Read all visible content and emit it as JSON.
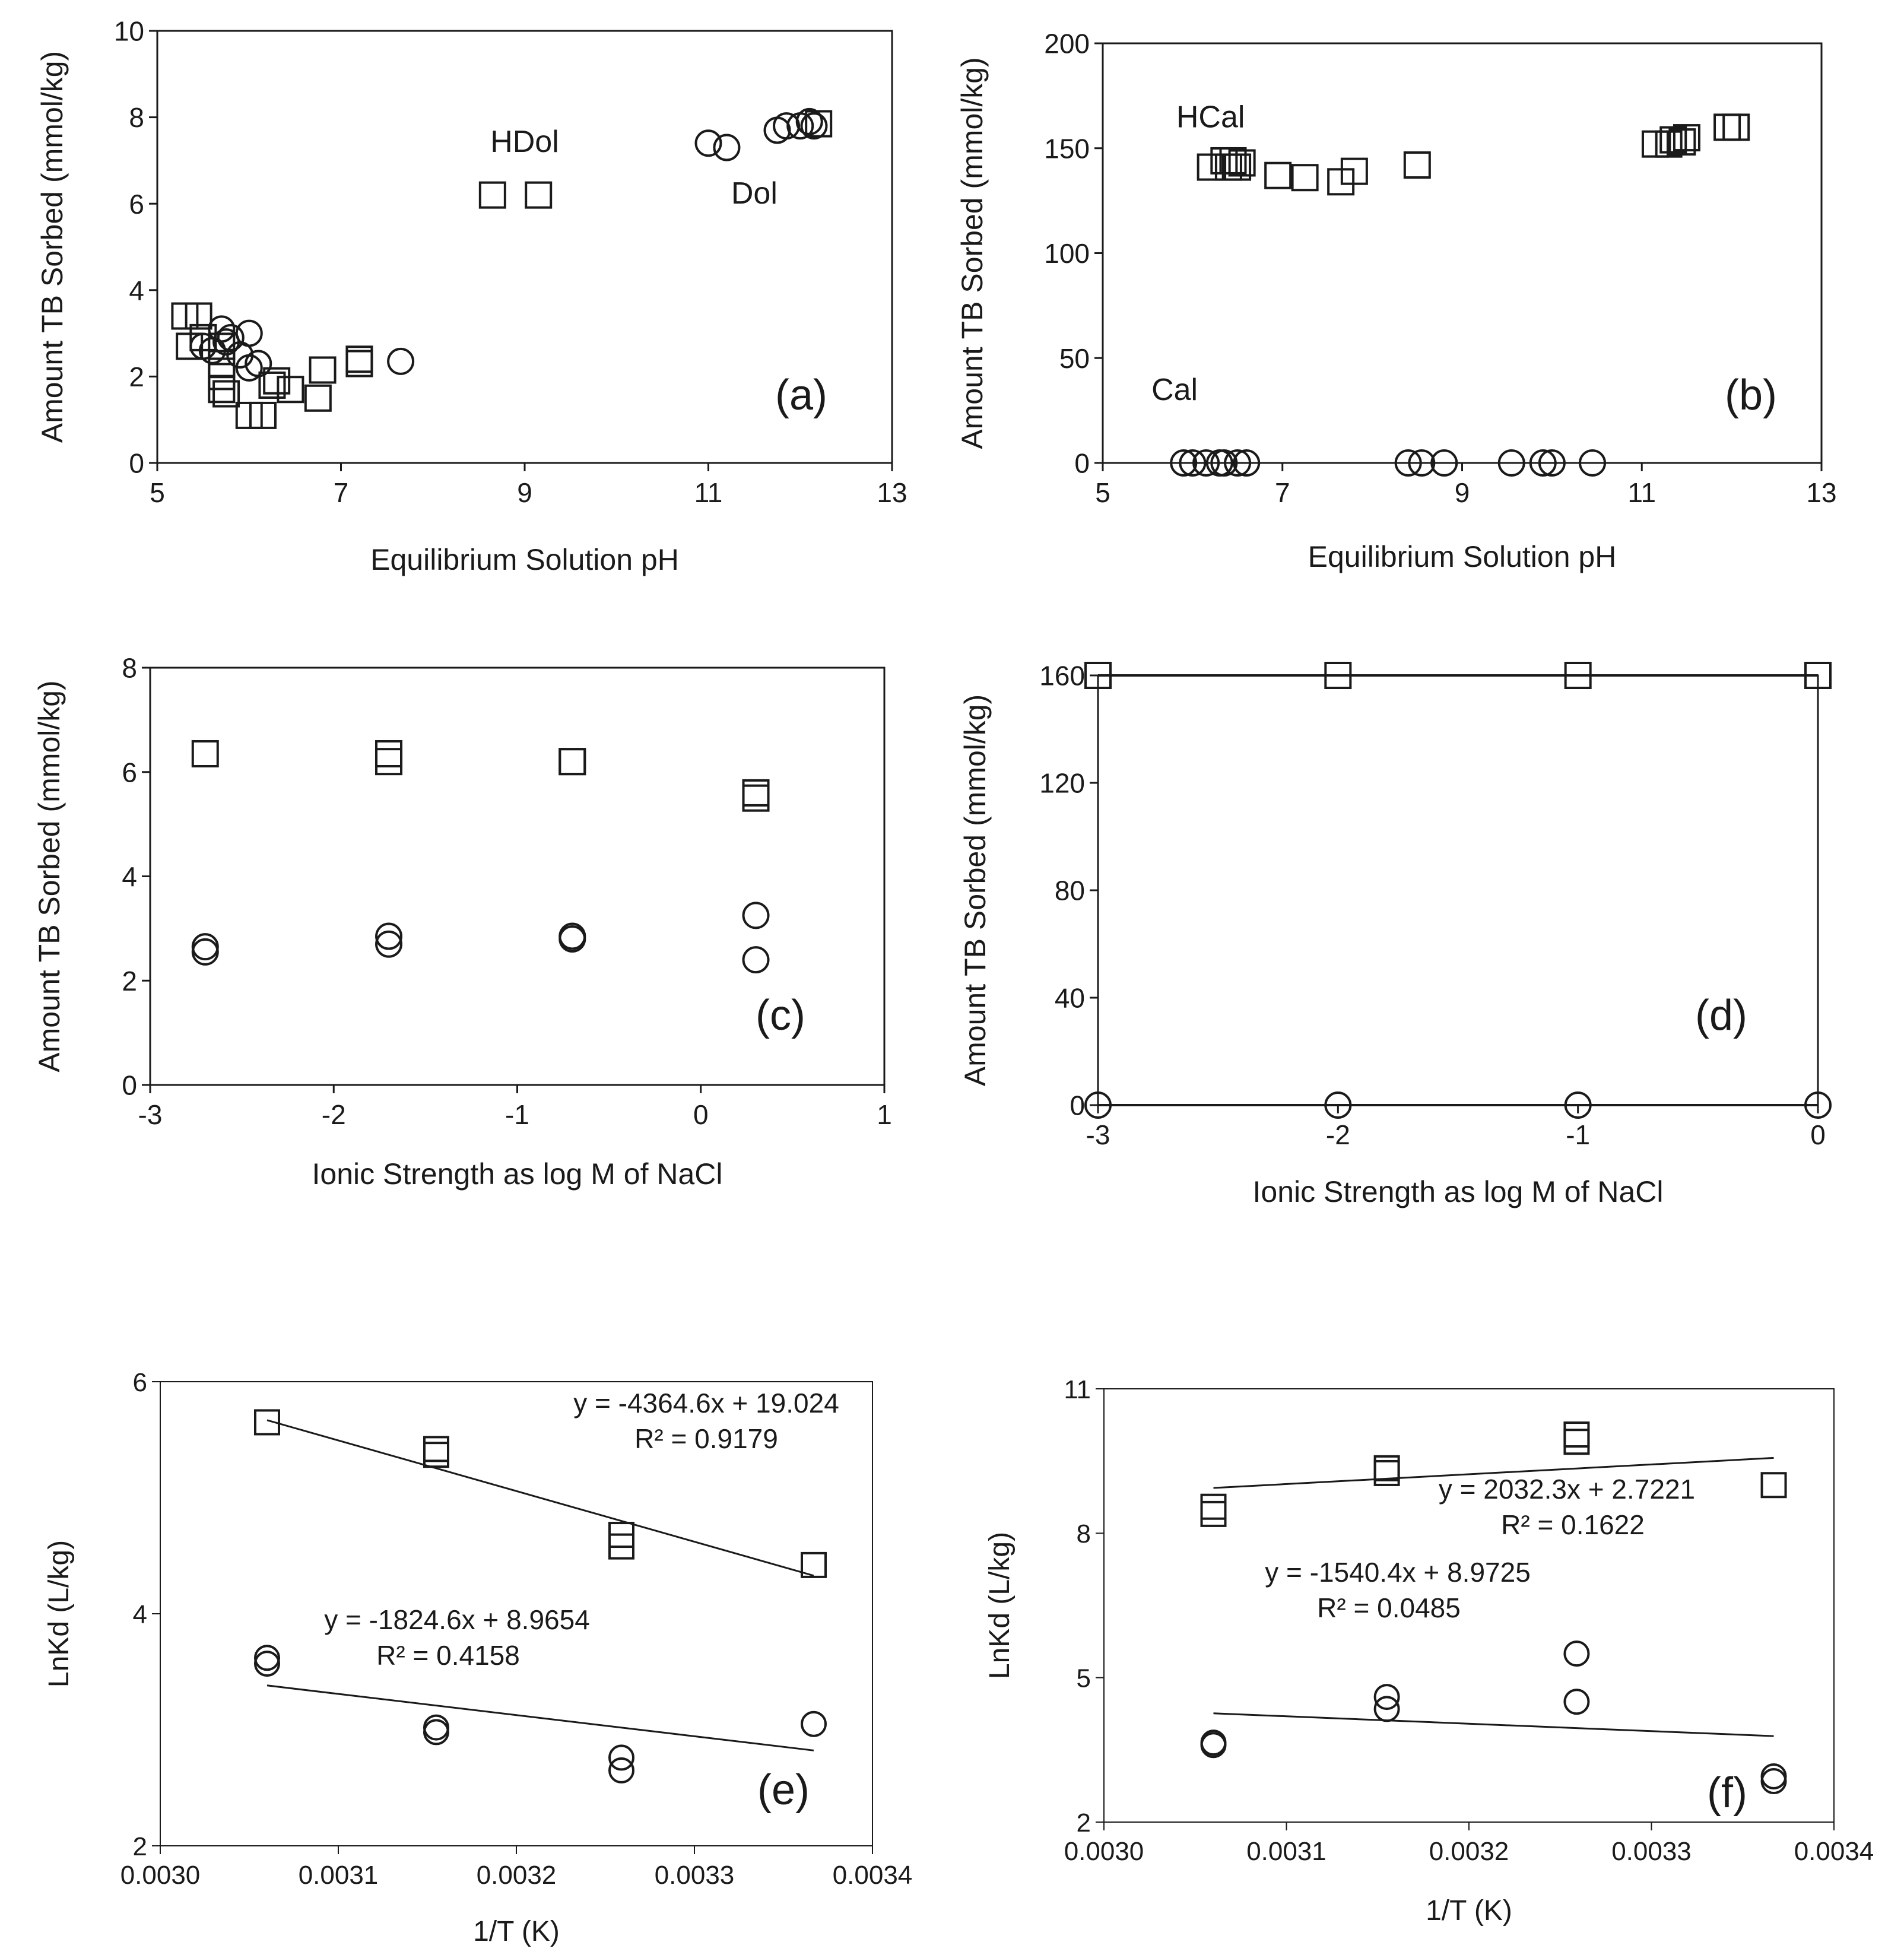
{
  "chart_data": [
    {
      "panel": "(a)",
      "type": "scatter",
      "xlabel": "Equilibrium Solution pH",
      "ylabel": "Amount TB Sorbed (mmol/kg)",
      "xlim": [
        5,
        13
      ],
      "ylim": [
        0,
        10
      ],
      "xticks": [
        5,
        7,
        9,
        11,
        13
      ],
      "yticks": [
        0,
        2,
        4,
        6,
        8,
        10
      ],
      "labels": [
        {
          "text": "HDol",
          "x": 9.0,
          "y": 7.2
        },
        {
          "text": "Dol",
          "x": 11.5,
          "y": 6.0
        }
      ],
      "series": [
        {
          "name": "Dol",
          "marker": "circle",
          "points": [
            [
              5.5,
              2.7
            ],
            [
              5.6,
              2.6
            ],
            [
              5.7,
              3.1
            ],
            [
              5.75,
              2.8
            ],
            [
              5.8,
              2.9
            ],
            [
              5.9,
              2.5
            ],
            [
              6.0,
              3.0
            ],
            [
              6.0,
              2.2
            ],
            [
              6.1,
              2.3
            ],
            [
              7.65,
              2.35
            ],
            [
              11.0,
              7.4
            ],
            [
              11.2,
              7.3
            ],
            [
              11.75,
              7.7
            ],
            [
              11.85,
              7.8
            ],
            [
              12.0,
              7.8
            ],
            [
              12.1,
              7.9
            ],
            [
              12.15,
              7.8
            ]
          ]
        },
        {
          "name": "HDol",
          "marker": "square",
          "points": [
            [
              5.3,
              3.4
            ],
            [
              5.45,
              3.4
            ],
            [
              5.35,
              2.7
            ],
            [
              5.5,
              2.9
            ],
            [
              5.7,
              2.7
            ],
            [
              5.7,
              2.3
            ],
            [
              5.7,
              2.0
            ],
            [
              5.7,
              1.7
            ],
            [
              5.75,
              1.6
            ],
            [
              6.0,
              1.1
            ],
            [
              6.15,
              1.1
            ],
            [
              6.25,
              1.8
            ],
            [
              6.3,
              1.9
            ],
            [
              6.45,
              1.7
            ],
            [
              6.75,
              1.5
            ],
            [
              6.8,
              2.15
            ],
            [
              7.2,
              2.4
            ],
            [
              7.2,
              2.3
            ],
            [
              8.65,
              6.2
            ],
            [
              9.15,
              6.2
            ],
            [
              12.2,
              7.85
            ]
          ]
        }
      ]
    },
    {
      "panel": "(b)",
      "type": "scatter",
      "xlabel": "Equilibrium Solution pH",
      "ylabel": "Amount TB Sorbed (mmol/kg)",
      "xlim": [
        5,
        13
      ],
      "ylim": [
        0,
        200
      ],
      "xticks": [
        5,
        7,
        9,
        11,
        13
      ],
      "yticks": [
        0,
        50,
        100,
        150,
        200
      ],
      "labels": [
        {
          "text": "HCal",
          "x": 6.2,
          "y": 160
        },
        {
          "text": "Cal",
          "x": 5.8,
          "y": 30
        }
      ],
      "series": [
        {
          "name": "HCal",
          "marker": "square",
          "points": [
            [
              6.2,
              141
            ],
            [
              6.35,
              144
            ],
            [
              6.4,
              141
            ],
            [
              6.45,
              144
            ],
            [
              6.5,
              141
            ],
            [
              6.55,
              143
            ],
            [
              6.95,
              137
            ],
            [
              7.25,
              136
            ],
            [
              7.65,
              134
            ],
            [
              7.8,
              139
            ],
            [
              8.5,
              142
            ],
            [
              11.15,
              152
            ],
            [
              11.3,
              152
            ],
            [
              11.35,
              154
            ],
            [
              11.45,
              153
            ],
            [
              11.5,
              155
            ],
            [
              11.95,
              160
            ],
            [
              12.05,
              160
            ]
          ]
        },
        {
          "name": "Cal",
          "marker": "circle",
          "points": [
            [
              5.9,
              0
            ],
            [
              6.0,
              0
            ],
            [
              6.15,
              0
            ],
            [
              6.3,
              0
            ],
            [
              6.35,
              0
            ],
            [
              6.5,
              0
            ],
            [
              6.6,
              0
            ],
            [
              8.4,
              0
            ],
            [
              8.55,
              0
            ],
            [
              8.8,
              0
            ],
            [
              9.55,
              0
            ],
            [
              9.9,
              0
            ],
            [
              10.0,
              0
            ],
            [
              10.45,
              0
            ]
          ]
        }
      ]
    },
    {
      "panel": "(c)",
      "type": "scatter",
      "xlabel": "Ionic Strength as log M of NaCl",
      "ylabel": "Amount TB Sorbed (mmol/kg)",
      "xlim": [
        -3,
        1
      ],
      "ylim": [
        0,
        8
      ],
      "xticks": [
        -3,
        -2,
        -1,
        0,
        1
      ],
      "yticks": [
        0,
        2,
        4,
        6,
        8
      ],
      "series": [
        {
          "name": "squares",
          "marker": "square",
          "points": [
            [
              -2.7,
              6.35
            ],
            [
              -1.7,
              6.35
            ],
            [
              -1.7,
              6.2
            ],
            [
              -0.7,
              6.2
            ],
            [
              -0.7,
              6.2
            ],
            [
              0.3,
              5.6
            ],
            [
              0.3,
              5.5
            ]
          ]
        },
        {
          "name": "circles",
          "marker": "circle",
          "points": [
            [
              -2.7,
              2.65
            ],
            [
              -2.7,
              2.55
            ],
            [
              -1.7,
              2.85
            ],
            [
              -1.7,
              2.7
            ],
            [
              -0.7,
              2.85
            ],
            [
              -0.7,
              2.8
            ],
            [
              0.3,
              3.25
            ],
            [
              0.3,
              2.4
            ]
          ]
        }
      ]
    },
    {
      "panel": "(d)",
      "type": "line",
      "xlabel": "Ionic Strength as log M of NaCl",
      "ylabel": "Amount TB Sorbed (mmol/kg)",
      "xlim": [
        -3,
        0
      ],
      "ylim": [
        0,
        160
      ],
      "xticks": [
        -3,
        -2,
        -1,
        0
      ],
      "yticks": [
        0,
        40,
        80,
        120,
        160
      ],
      "series": [
        {
          "name": "squares",
          "marker": "square",
          "points": [
            [
              -3,
              160
            ],
            [
              -2,
              160
            ],
            [
              -1,
              160
            ],
            [
              0,
              160
            ]
          ]
        },
        {
          "name": "circles",
          "marker": "circle",
          "points": [
            [
              -3,
              0
            ],
            [
              -2,
              0
            ],
            [
              -1,
              0
            ],
            [
              0,
              0
            ]
          ]
        }
      ]
    },
    {
      "panel": "(e)",
      "type": "scatter",
      "xlabel": "1/T (K)",
      "ylabel": "LnKd (L/kg)",
      "xlim": [
        0.003,
        0.0034
      ],
      "ylim": [
        2,
        6
      ],
      "xticks": [
        0.003,
        0.0031,
        0.0032,
        0.0033,
        0.0034
      ],
      "xtick_labels": [
        "0.0030",
        "0.0031",
        "0.0032",
        "0.0033",
        "0.0034"
      ],
      "yticks": [
        2,
        4,
        6
      ],
      "series": [
        {
          "name": "squares",
          "marker": "square",
          "points": [
            [
              0.00306,
              5.65
            ],
            [
              0.003155,
              5.42
            ],
            [
              0.003155,
              5.37
            ],
            [
              0.003259,
              4.68
            ],
            [
              0.003259,
              4.58
            ],
            [
              0.003367,
              4.42
            ]
          ],
          "trendline": {
            "slope": -4364.6,
            "intercept": 19.024,
            "equation": "y = -4364.6x + 19.024",
            "r2": "R² = 0.9179"
          }
        },
        {
          "name": "circles",
          "marker": "circle",
          "points": [
            [
              0.00306,
              3.62
            ],
            [
              0.00306,
              3.57
            ],
            [
              0.003155,
              3.02
            ],
            [
              0.003155,
              2.98
            ],
            [
              0.003259,
              2.76
            ],
            [
              0.003259,
              2.65
            ],
            [
              0.003367,
              3.05
            ]
          ],
          "trendline": {
            "slope": -1824.6,
            "intercept": 8.9654,
            "equation": "y = -1824.6x + 8.9654",
            "r2": "R² = 0.4158"
          }
        }
      ]
    },
    {
      "panel": "(f)",
      "type": "scatter",
      "xlabel": "1/T (K)",
      "ylabel": "LnKd (L/kg)",
      "xlim": [
        0.003,
        0.0034
      ],
      "ylim": [
        2,
        11
      ],
      "xticks": [
        0.003,
        0.0031,
        0.0032,
        0.0033,
        0.0034
      ],
      "xtick_labels": [
        "0.0030",
        "0.0031",
        "0.0032",
        "0.0033",
        "0.0034"
      ],
      "yticks": [
        2,
        5,
        8,
        11
      ],
      "series": [
        {
          "name": "squares",
          "marker": "square",
          "points": [
            [
              0.00306,
              8.55
            ],
            [
              0.00306,
              8.4
            ],
            [
              0.003155,
              9.35
            ],
            [
              0.003155,
              9.25
            ],
            [
              0.003259,
              10.05
            ],
            [
              0.003259,
              9.9
            ],
            [
              0.003367,
              9.0
            ]
          ],
          "trendline": {
            "slope": 2032.3,
            "intercept": 2.7221,
            "equation": "y = 2032.3x + 2.7221",
            "r2": "R² = 0.1622"
          }
        },
        {
          "name": "circles",
          "marker": "circle",
          "points": [
            [
              0.00306,
              3.65
            ],
            [
              0.00306,
              3.6
            ],
            [
              0.003155,
              4.6
            ],
            [
              0.003155,
              4.35
            ],
            [
              0.003259,
              5.5
            ],
            [
              0.003259,
              4.5
            ],
            [
              0.003367,
              2.95
            ],
            [
              0.003367,
              2.85
            ]
          ],
          "trendline": {
            "slope": -1540.4,
            "intercept": 8.9725,
            "equation": "y = -1540.4x + 8.9725",
            "r2": "R² = 0.0485"
          }
        }
      ]
    }
  ]
}
